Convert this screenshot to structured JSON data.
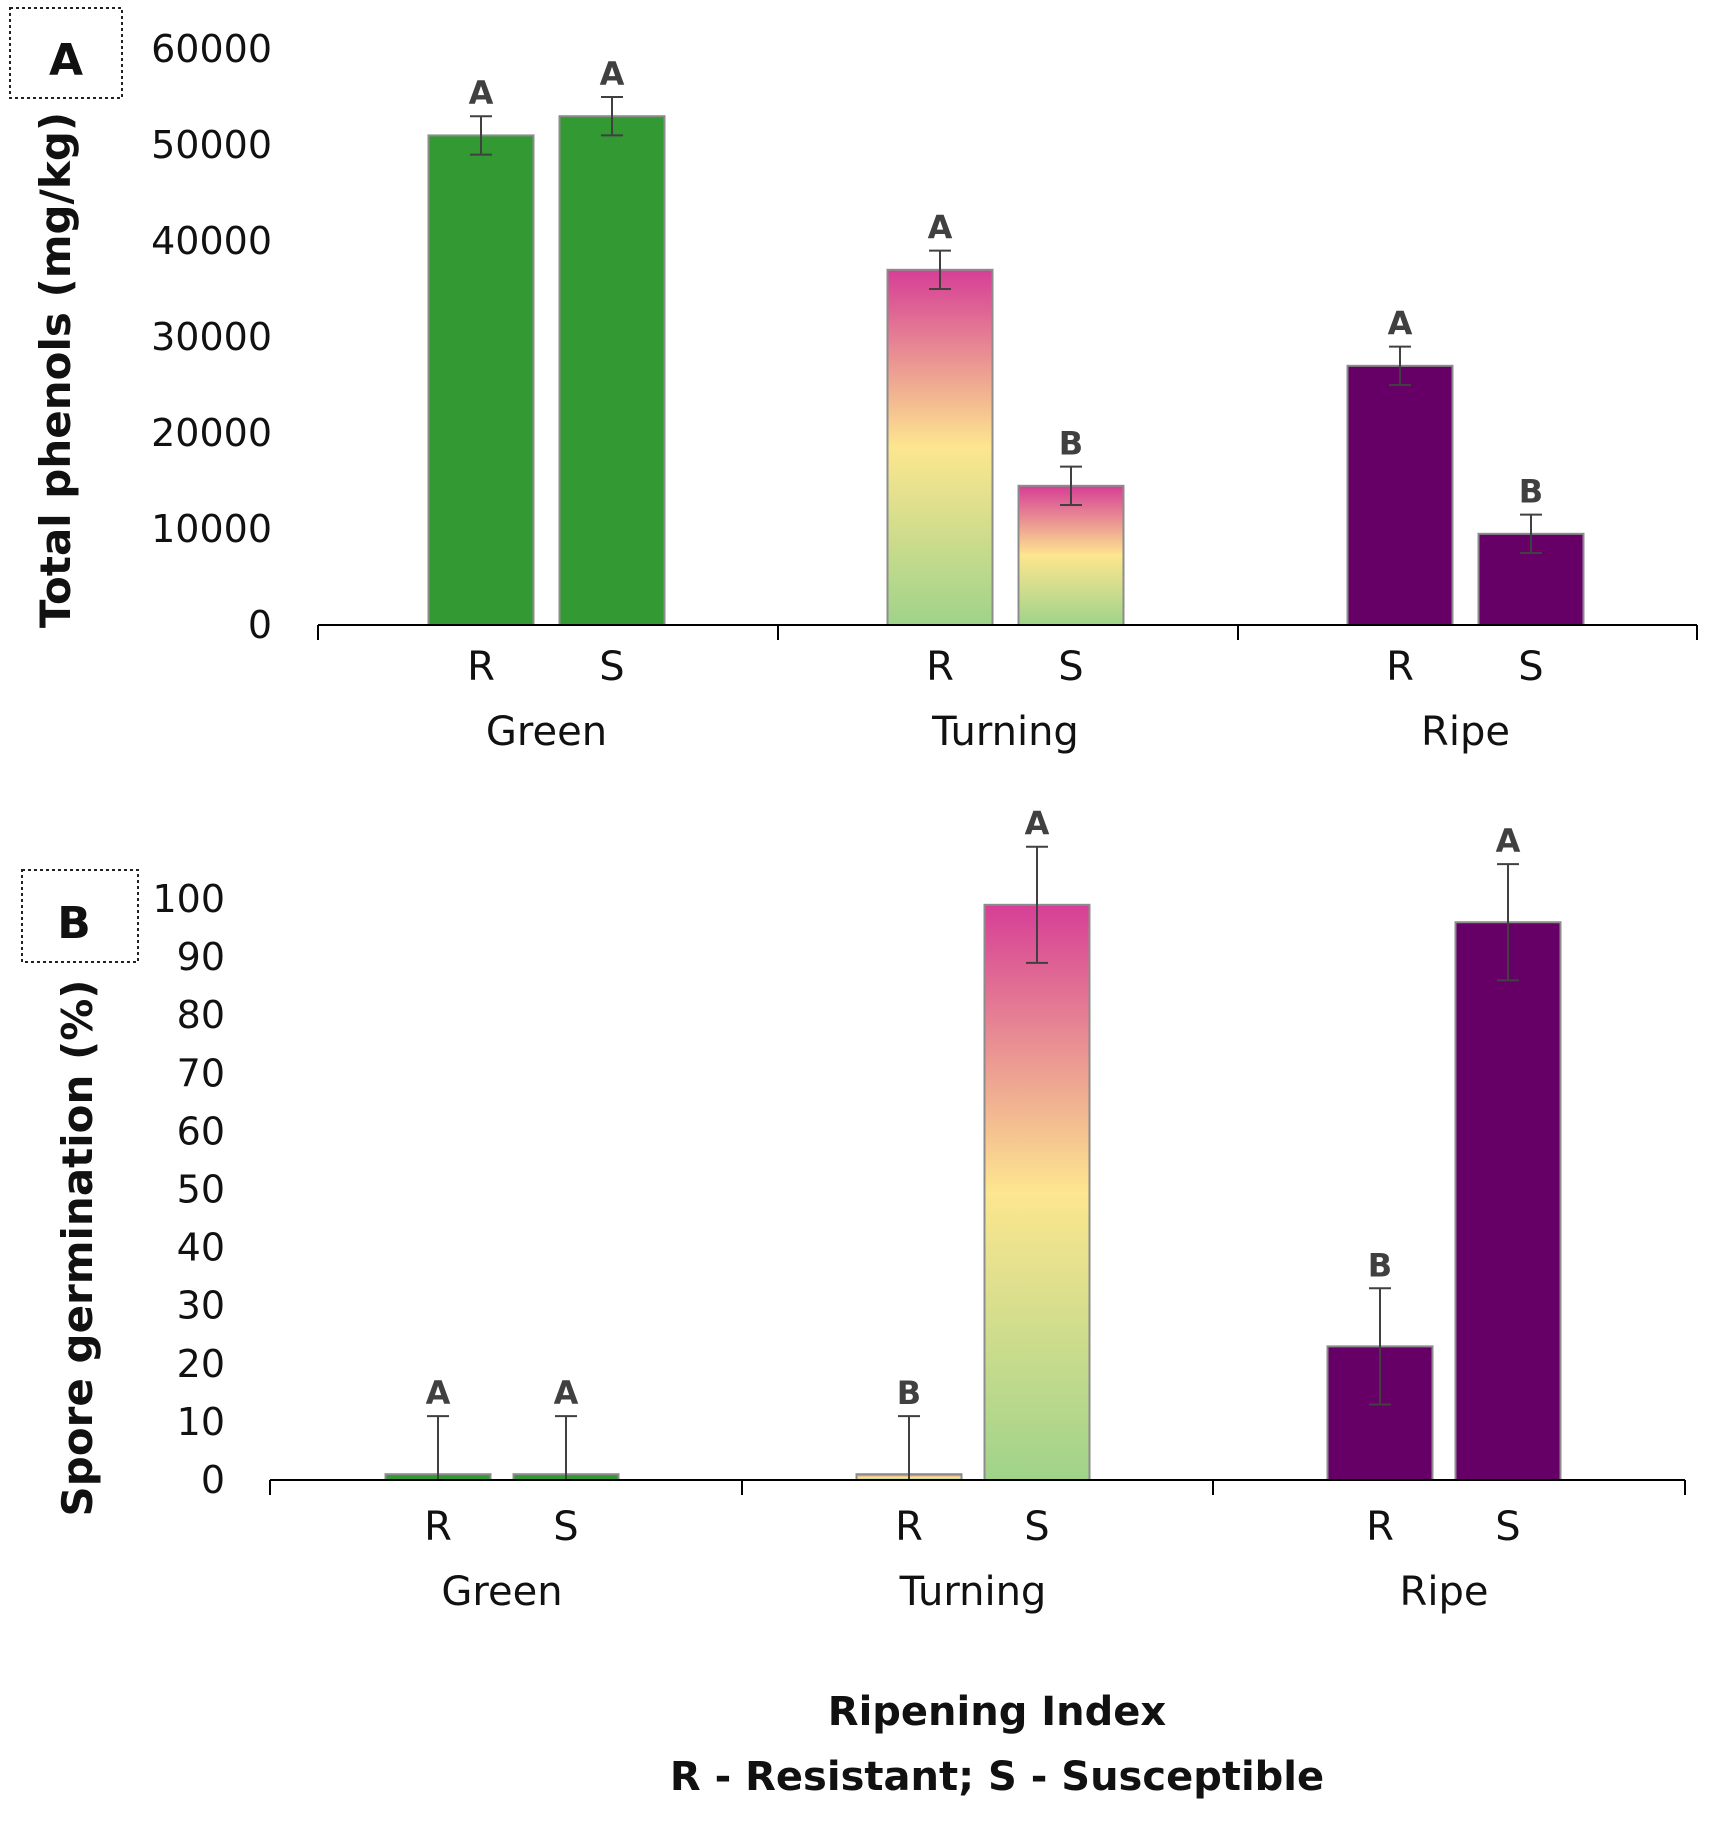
{
  "chart_data": [
    {
      "type": "bar",
      "panel_label": "A",
      "ylabel": "Total phenols (mg/kg)",
      "ylim": [
        0,
        60000
      ],
      "yticks": [
        0,
        10000,
        20000,
        30000,
        40000,
        50000,
        60000
      ],
      "groups": [
        "Green",
        "Turning",
        "Ripe"
      ],
      "categories": [
        "R",
        "S"
      ],
      "series": [
        {
          "group": "Green",
          "category": "R",
          "value": 51000,
          "error": 2000,
          "sig": "A",
          "fill": "green"
        },
        {
          "group": "Green",
          "category": "S",
          "value": 53000,
          "error": 2000,
          "sig": "A",
          "fill": "green"
        },
        {
          "group": "Turning",
          "category": "R",
          "value": 37000,
          "error": 2000,
          "sig": "A",
          "fill": "turning"
        },
        {
          "group": "Turning",
          "category": "S",
          "value": 14500,
          "error": 2000,
          "sig": "B",
          "fill": "turning"
        },
        {
          "group": "Ripe",
          "category": "R",
          "value": 27000,
          "error": 2000,
          "sig": "A",
          "fill": "ripe"
        },
        {
          "group": "Ripe",
          "category": "S",
          "value": 9500,
          "error": 2000,
          "sig": "B",
          "fill": "ripe"
        }
      ]
    },
    {
      "type": "bar",
      "panel_label": "B",
      "ylabel": "Spore germination (%)",
      "ylim": [
        0,
        100
      ],
      "yticks": [
        0,
        10,
        20,
        30,
        40,
        50,
        60,
        70,
        80,
        90,
        100
      ],
      "groups": [
        "Green",
        "Turning",
        "Ripe"
      ],
      "categories": [
        "R",
        "S"
      ],
      "series": [
        {
          "group": "Green",
          "category": "R",
          "value": 1,
          "error": 10,
          "sig": "A",
          "fill": "green"
        },
        {
          "group": "Green",
          "category": "S",
          "value": 1,
          "error": 10,
          "sig": "A",
          "fill": "green"
        },
        {
          "group": "Turning",
          "category": "R",
          "value": 1,
          "error": 10,
          "sig": "B",
          "fill": "turning"
        },
        {
          "group": "Turning",
          "category": "S",
          "value": 99,
          "error": 10,
          "sig": "A",
          "fill": "turning"
        },
        {
          "group": "Ripe",
          "category": "R",
          "value": 23,
          "error": 10,
          "sig": "B",
          "fill": "ripe"
        },
        {
          "group": "Ripe",
          "category": "S",
          "value": 96,
          "error": 10,
          "sig": "A",
          "fill": "ripe"
        }
      ]
    }
  ],
  "colors": {
    "green": "#339933",
    "ripe": "#660066",
    "turning_top": "#d63e96",
    "turning_mid": "#fde68f",
    "turning_bottom": "#9fd38a",
    "bar_border": "#8c8c8c",
    "error_bar": "#404040"
  },
  "footer": {
    "line1": "Ripening Index",
    "line2": "R - Resistant; S - Susceptible"
  }
}
